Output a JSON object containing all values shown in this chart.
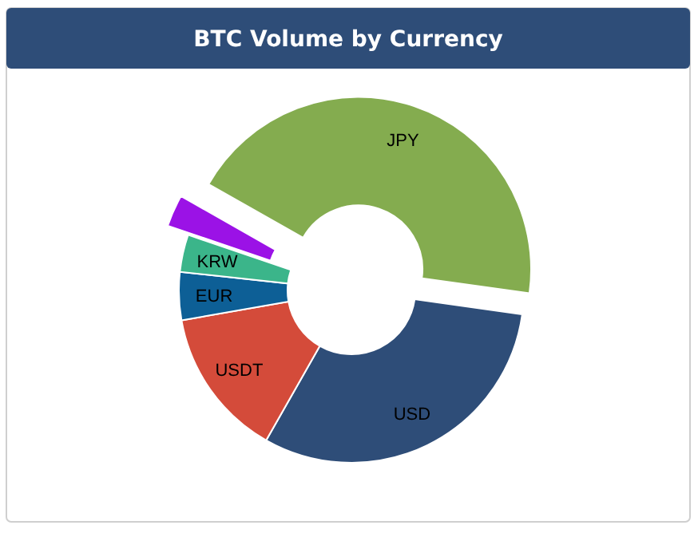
{
  "chart_data": {
    "type": "donut",
    "title": "BTC Volume by Currency",
    "categories": [
      "JPY",
      "USD",
      "USDT",
      "EUR",
      "KRW",
      null
    ],
    "values": [
      44,
      31,
      14,
      4.5,
      3.5,
      3
    ],
    "colors": [
      "#84ac4f",
      "#2e4d78",
      "#d44b3a",
      "#0d5f96",
      "#3bb58a",
      "#9b12e6"
    ]
  }
}
